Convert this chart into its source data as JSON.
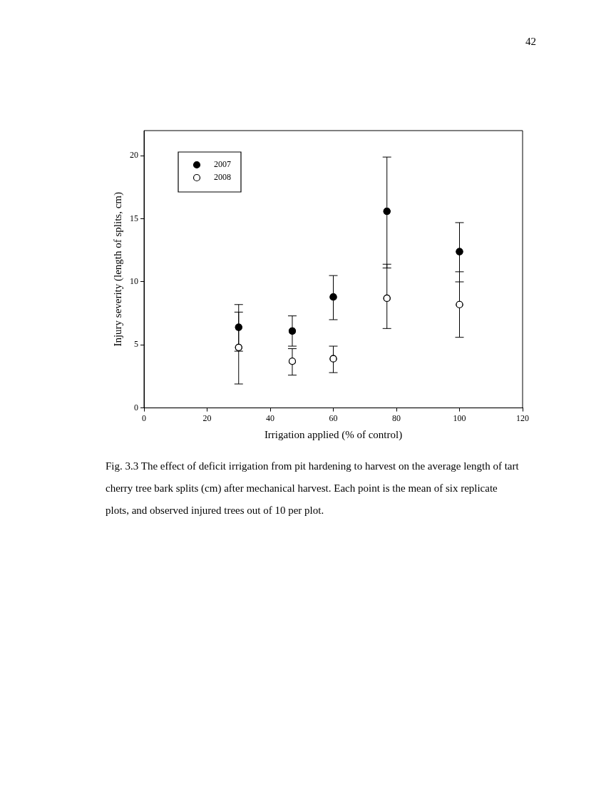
{
  "chart_data": {
    "type": "scatter",
    "xlabel": "Irrigation applied (% of control)",
    "ylabel": "Injury severity (length of splits, cm)",
    "x": [
      30,
      47,
      60,
      77,
      100
    ],
    "xlim": [
      0,
      120
    ],
    "xticks": [
      0,
      20,
      40,
      60,
      80,
      100,
      120
    ],
    "ylim": [
      0,
      22
    ],
    "yticks": [
      0,
      5,
      10,
      15,
      20
    ],
    "grid": false,
    "legend": "top left",
    "marker": "circle",
    "series": [
      {
        "name": "2007",
        "color": "#000000",
        "values": [
          6.4,
          6.1,
          8.8,
          15.6,
          12.4
        ],
        "errors": [
          [
            4.5,
            8.2
          ],
          [
            4.9,
            7.3
          ],
          [
            7.0,
            10.5
          ],
          [
            11.1,
            19.9
          ],
          [
            10.0,
            14.7
          ]
        ]
      },
      {
        "name": "2008",
        "color": "#ffffff",
        "values": [
          4.8,
          3.7,
          3.9,
          8.7,
          8.2
        ],
        "errors": [
          [
            1.9,
            7.6
          ],
          [
            2.6,
            4.7
          ],
          [
            2.8,
            4.9
          ],
          [
            6.3,
            11.4
          ],
          [
            5.6,
            10.8
          ]
        ]
      }
    ],
    "annotations": [
      "42",
      "Fig. 3.3  The effect of deficit irrigation from pit hardening to harvest on the average length of tart cherry tree bark splits (cm) after mechanical harvest.  Each point is the mean of six replicate plots, and observed injured trees out of 10 per plot."
    ]
  }
}
